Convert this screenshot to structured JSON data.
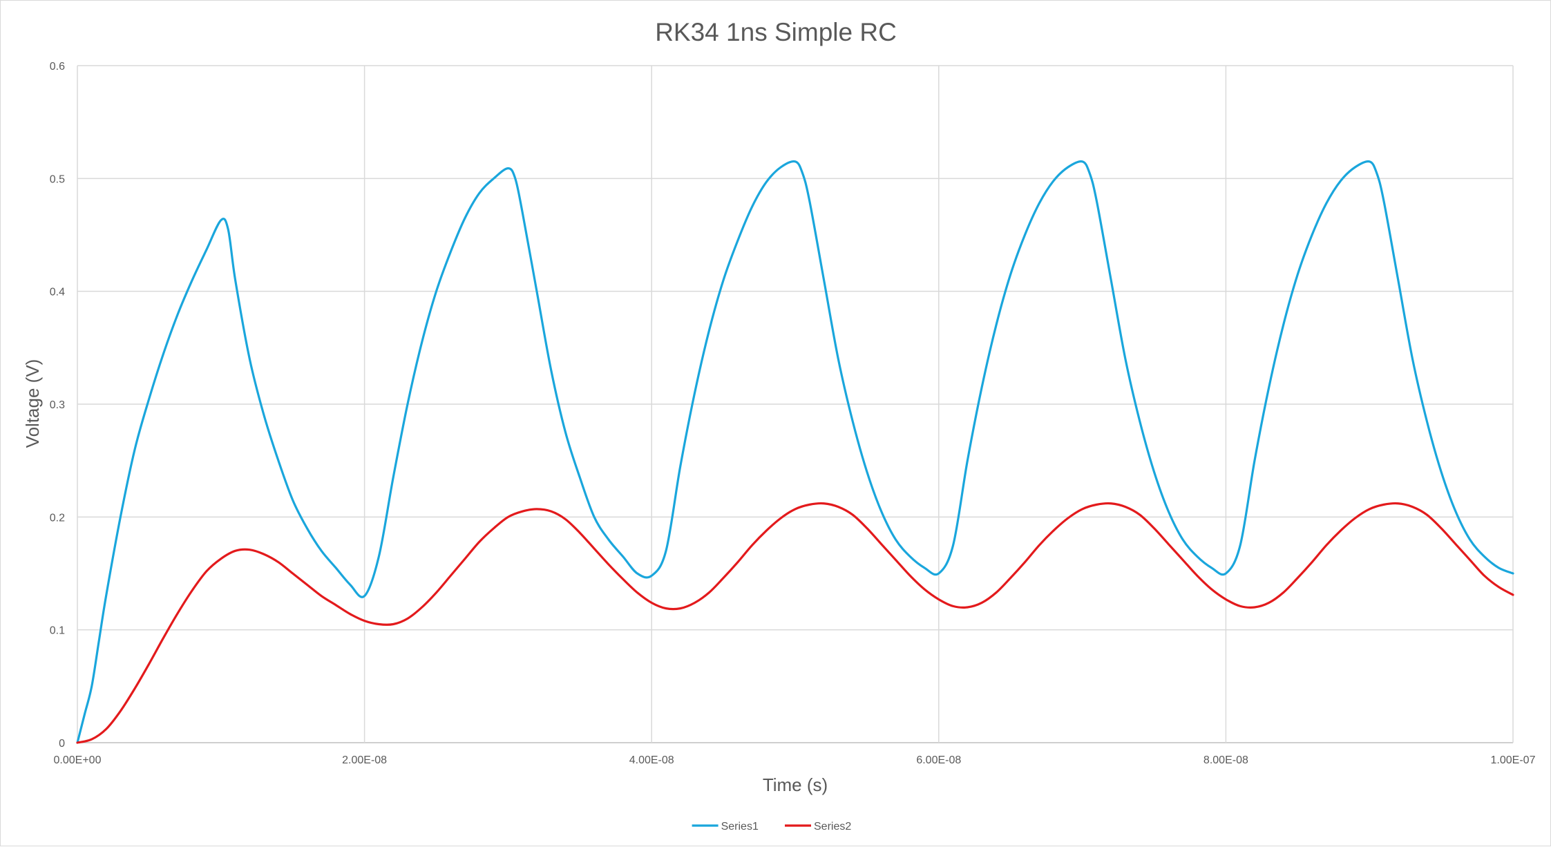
{
  "chart_data": {
    "type": "line",
    "title": "RK34 1ns Simple RC",
    "xlabel": "Time (s)",
    "ylabel": "Voltage (V)",
    "xlim": [
      0,
      1e-07
    ],
    "ylim": [
      0,
      0.6
    ],
    "x_ticks": [
      0,
      2e-08,
      4e-08,
      6e-08,
      8e-08,
      1e-07
    ],
    "x_tick_labels": [
      "0.00E+00",
      "2.00E-08",
      "4.00E-08",
      "6.00E-08",
      "8.00E-08",
      "1.00E-07"
    ],
    "y_ticks": [
      0,
      0.1,
      0.2,
      0.3,
      0.4,
      0.5,
      0.6
    ],
    "y_tick_labels": [
      "0",
      "0.1",
      "0.2",
      "0.3",
      "0.4",
      "0.5",
      "0.6"
    ],
    "grid": true,
    "legend_position": "bottom",
    "series": [
      {
        "name": "Series1",
        "color": "#1aa6dc",
        "points": [
          [
            0,
            0
          ],
          [
            5e-10,
            0.025
          ],
          [
            1e-09,
            0.05
          ],
          [
            1.5e-09,
            0.09
          ],
          [
            2e-09,
            0.13
          ],
          [
            3e-09,
            0.2
          ],
          [
            4e-09,
            0.26
          ],
          [
            5e-09,
            0.305
          ],
          [
            6e-09,
            0.345
          ],
          [
            7e-09,
            0.38
          ],
          [
            8e-09,
            0.41
          ],
          [
            9e-09,
            0.437
          ],
          [
            1e-08,
            0.463
          ],
          [
            1.05e-08,
            0.455
          ],
          [
            1.1e-08,
            0.41
          ],
          [
            1.2e-08,
            0.34
          ],
          [
            1.3e-08,
            0.29
          ],
          [
            1.4e-08,
            0.25
          ],
          [
            1.5e-08,
            0.215
          ],
          [
            1.6e-08,
            0.19
          ],
          [
            1.7e-08,
            0.17
          ],
          [
            1.8e-08,
            0.155
          ],
          [
            1.9e-08,
            0.14
          ],
          [
            2e-08,
            0.13
          ],
          [
            2.1e-08,
            0.165
          ],
          [
            2.2e-08,
            0.235
          ],
          [
            2.3e-08,
            0.3
          ],
          [
            2.4e-08,
            0.355
          ],
          [
            2.5e-08,
            0.4
          ],
          [
            2.6e-08,
            0.435
          ],
          [
            2.7e-08,
            0.465
          ],
          [
            2.8e-08,
            0.487
          ],
          [
            2.9e-08,
            0.5
          ],
          [
            3e-08,
            0.509
          ],
          [
            3.05e-08,
            0.5
          ],
          [
            3.1e-08,
            0.47
          ],
          [
            3.2e-08,
            0.4
          ],
          [
            3.3e-08,
            0.33
          ],
          [
            3.4e-08,
            0.275
          ],
          [
            3.5e-08,
            0.235
          ],
          [
            3.6e-08,
            0.2
          ],
          [
            3.7e-08,
            0.18
          ],
          [
            3.8e-08,
            0.165
          ],
          [
            3.9e-08,
            0.15
          ],
          [
            4e-08,
            0.148
          ],
          [
            4.1e-08,
            0.17
          ],
          [
            4.2e-08,
            0.245
          ],
          [
            4.3e-08,
            0.31
          ],
          [
            4.4e-08,
            0.365
          ],
          [
            4.5e-08,
            0.41
          ],
          [
            4.6e-08,
            0.445
          ],
          [
            4.7e-08,
            0.475
          ],
          [
            4.8e-08,
            0.497
          ],
          [
            4.9e-08,
            0.51
          ],
          [
            5e-08,
            0.515
          ],
          [
            5.05e-08,
            0.505
          ],
          [
            5.1e-08,
            0.48
          ],
          [
            5.2e-08,
            0.41
          ],
          [
            5.3e-08,
            0.34
          ],
          [
            5.4e-08,
            0.285
          ],
          [
            5.5e-08,
            0.24
          ],
          [
            5.6e-08,
            0.205
          ],
          [
            5.7e-08,
            0.18
          ],
          [
            5.8e-08,
            0.165
          ],
          [
            5.9e-08,
            0.155
          ],
          [
            6e-08,
            0.15
          ],
          [
            6.1e-08,
            0.175
          ],
          [
            6.2e-08,
            0.25
          ],
          [
            6.3e-08,
            0.315
          ],
          [
            6.4e-08,
            0.37
          ],
          [
            6.5e-08,
            0.415
          ],
          [
            6.6e-08,
            0.45
          ],
          [
            6.7e-08,
            0.478
          ],
          [
            6.8e-08,
            0.498
          ],
          [
            6.9e-08,
            0.51
          ],
          [
            7e-08,
            0.515
          ],
          [
            7.05e-08,
            0.505
          ],
          [
            7.1e-08,
            0.48
          ],
          [
            7.2e-08,
            0.41
          ],
          [
            7.3e-08,
            0.34
          ],
          [
            7.4e-08,
            0.285
          ],
          [
            7.5e-08,
            0.24
          ],
          [
            7.6e-08,
            0.205
          ],
          [
            7.7e-08,
            0.18
          ],
          [
            7.8e-08,
            0.165
          ],
          [
            7.9e-08,
            0.155
          ],
          [
            8e-08,
            0.15
          ],
          [
            8.1e-08,
            0.175
          ],
          [
            8.2e-08,
            0.25
          ],
          [
            8.3e-08,
            0.315
          ],
          [
            8.4e-08,
            0.37
          ],
          [
            8.5e-08,
            0.415
          ],
          [
            8.6e-08,
            0.45
          ],
          [
            8.7e-08,
            0.478
          ],
          [
            8.8e-08,
            0.498
          ],
          [
            8.9e-08,
            0.51
          ],
          [
            9e-08,
            0.515
          ],
          [
            9.05e-08,
            0.505
          ],
          [
            9.1e-08,
            0.48
          ],
          [
            9.2e-08,
            0.41
          ],
          [
            9.3e-08,
            0.34
          ],
          [
            9.4e-08,
            0.285
          ],
          [
            9.5e-08,
            0.24
          ],
          [
            9.6e-08,
            0.205
          ],
          [
            9.7e-08,
            0.18
          ],
          [
            9.8e-08,
            0.165
          ],
          [
            9.9e-08,
            0.155
          ],
          [
            1e-07,
            0.15
          ]
        ]
      },
      {
        "name": "Series2",
        "color": "#e31a1c",
        "points": [
          [
            0,
            0
          ],
          [
            1e-09,
            0.003
          ],
          [
            2e-09,
            0.012
          ],
          [
            3e-09,
            0.028
          ],
          [
            4e-09,
            0.048
          ],
          [
            5e-09,
            0.07
          ],
          [
            6e-09,
            0.093
          ],
          [
            7e-09,
            0.115
          ],
          [
            8e-09,
            0.135
          ],
          [
            9e-09,
            0.152
          ],
          [
            1e-08,
            0.163
          ],
          [
            1.1e-08,
            0.17
          ],
          [
            1.2e-08,
            0.171
          ],
          [
            1.3e-08,
            0.167
          ],
          [
            1.4e-08,
            0.16
          ],
          [
            1.5e-08,
            0.15
          ],
          [
            1.6e-08,
            0.14
          ],
          [
            1.7e-08,
            0.13
          ],
          [
            1.8e-08,
            0.122
          ],
          [
            1.9e-08,
            0.114
          ],
          [
            2e-08,
            0.108
          ],
          [
            2.1e-08,
            0.105
          ],
          [
            2.2e-08,
            0.105
          ],
          [
            2.3e-08,
            0.11
          ],
          [
            2.4e-08,
            0.12
          ],
          [
            2.5e-08,
            0.133
          ],
          [
            2.6e-08,
            0.148
          ],
          [
            2.7e-08,
            0.163
          ],
          [
            2.8e-08,
            0.178
          ],
          [
            2.9e-08,
            0.19
          ],
          [
            3e-08,
            0.2
          ],
          [
            3.1e-08,
            0.205
          ],
          [
            3.2e-08,
            0.207
          ],
          [
            3.3e-08,
            0.205
          ],
          [
            3.4e-08,
            0.198
          ],
          [
            3.5e-08,
            0.186
          ],
          [
            3.6e-08,
            0.172
          ],
          [
            3.7e-08,
            0.158
          ],
          [
            3.8e-08,
            0.145
          ],
          [
            3.9e-08,
            0.133
          ],
          [
            4e-08,
            0.124
          ],
          [
            4.1e-08,
            0.119
          ],
          [
            4.2e-08,
            0.119
          ],
          [
            4.3e-08,
            0.124
          ],
          [
            4.4e-08,
            0.133
          ],
          [
            4.5e-08,
            0.146
          ],
          [
            4.6e-08,
            0.16
          ],
          [
            4.7e-08,
            0.175
          ],
          [
            4.8e-08,
            0.188
          ],
          [
            4.9e-08,
            0.199
          ],
          [
            5e-08,
            0.207
          ],
          [
            5.1e-08,
            0.211
          ],
          [
            5.2e-08,
            0.212
          ],
          [
            5.3e-08,
            0.209
          ],
          [
            5.4e-08,
            0.202
          ],
          [
            5.5e-08,
            0.19
          ],
          [
            5.6e-08,
            0.176
          ],
          [
            5.7e-08,
            0.162
          ],
          [
            5.8e-08,
            0.148
          ],
          [
            5.9e-08,
            0.136
          ],
          [
            6e-08,
            0.127
          ],
          [
            6.1e-08,
            0.121
          ],
          [
            6.2e-08,
            0.12
          ],
          [
            6.3e-08,
            0.124
          ],
          [
            6.4e-08,
            0.133
          ],
          [
            6.5e-08,
            0.146
          ],
          [
            6.6e-08,
            0.16
          ],
          [
            6.7e-08,
            0.175
          ],
          [
            6.8e-08,
            0.188
          ],
          [
            6.9e-08,
            0.199
          ],
          [
            7e-08,
            0.207
          ],
          [
            7.1e-08,
            0.211
          ],
          [
            7.2e-08,
            0.212
          ],
          [
            7.3e-08,
            0.209
          ],
          [
            7.4e-08,
            0.202
          ],
          [
            7.5e-08,
            0.19
          ],
          [
            7.6e-08,
            0.176
          ],
          [
            7.7e-08,
            0.162
          ],
          [
            7.8e-08,
            0.148
          ],
          [
            7.9e-08,
            0.136
          ],
          [
            8e-08,
            0.127
          ],
          [
            8.1e-08,
            0.121
          ],
          [
            8.2e-08,
            0.12
          ],
          [
            8.3e-08,
            0.124
          ],
          [
            8.4e-08,
            0.133
          ],
          [
            8.5e-08,
            0.146
          ],
          [
            8.6e-08,
            0.16
          ],
          [
            8.7e-08,
            0.175
          ],
          [
            8.8e-08,
            0.188
          ],
          [
            8.9e-08,
            0.199
          ],
          [
            9e-08,
            0.207
          ],
          [
            9.1e-08,
            0.211
          ],
          [
            9.2e-08,
            0.212
          ],
          [
            9.3e-08,
            0.209
          ],
          [
            9.4e-08,
            0.202
          ],
          [
            9.5e-08,
            0.19
          ],
          [
            9.6e-08,
            0.176
          ],
          [
            9.7e-08,
            0.162
          ],
          [
            9.8e-08,
            0.148
          ],
          [
            9.9e-08,
            0.138
          ],
          [
            1e-07,
            0.131
          ]
        ]
      }
    ]
  }
}
